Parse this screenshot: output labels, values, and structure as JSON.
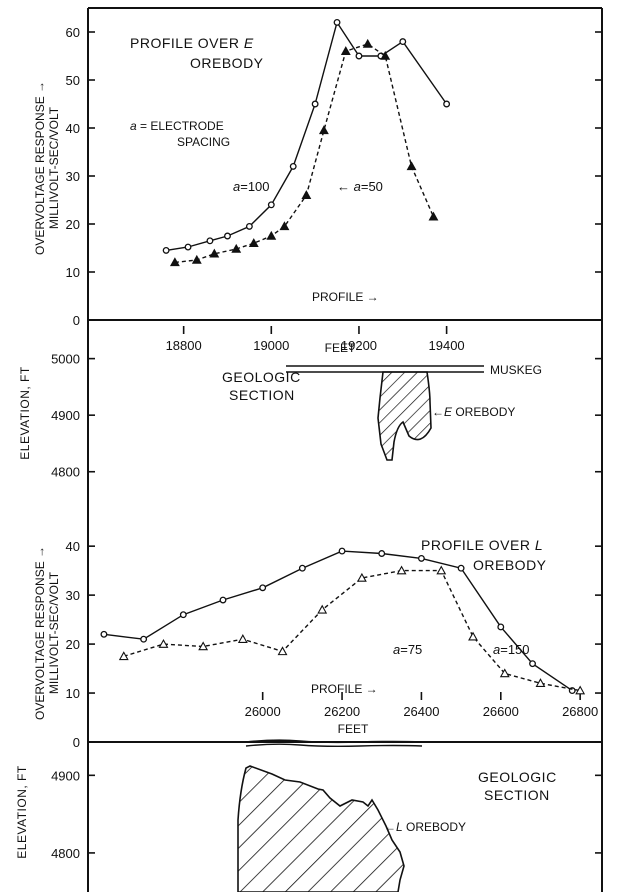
{
  "chart_data": [
    {
      "type": "line",
      "title": "PROFILE OVER E OREBODY",
      "ylabel_line1": "OVERVOLTAGE RESPONSE →",
      "ylabel_line2": "MILLIVOLT-SEC/VOLT",
      "xlabel": "FEET",
      "profile_label": "PROFILE →",
      "spacing_note_line1": "a = ELECTRODE",
      "spacing_note_line2": "SPACING",
      "x_ticks": [
        "18800",
        "19000",
        "19200",
        "19400"
      ],
      "x_tick_values": [
        18800,
        19000,
        19200,
        19400
      ],
      "y_ticks": [
        "0",
        "10",
        "20",
        "30",
        "40",
        "50",
        "60"
      ],
      "y_tick_values": [
        0,
        10,
        20,
        30,
        40,
        50,
        60
      ],
      "xlim": [
        18600,
        19750
      ],
      "ylim": [
        0,
        65
      ],
      "series": [
        {
          "name": "a = 100",
          "marker": "circle",
          "style": "solid",
          "x": [
            18760,
            18810,
            18860,
            18900,
            18950,
            19000,
            19050,
            19100,
            19150,
            19200,
            19250,
            19300,
            19400
          ],
          "y": [
            14.5,
            15.2,
            16.5,
            17.5,
            19.5,
            24,
            32,
            45,
            62,
            55,
            55,
            58,
            45
          ]
        },
        {
          "name": "a = 50",
          "marker": "filled-triangle",
          "style": "dashed",
          "x": [
            18780,
            18830,
            18870,
            18920,
            18960,
            19000,
            19030,
            19080,
            19120,
            19170,
            19220,
            19260,
            19320,
            19370
          ],
          "y": [
            12,
            12.5,
            13.8,
            14.8,
            16,
            17.5,
            19.5,
            26,
            39.5,
            56,
            57.5,
            55,
            32,
            21.5
          ]
        }
      ]
    },
    {
      "type": "diagram",
      "title_line1": "GEOLOGIC",
      "title_line2": "SECTION",
      "ylabel": "ELEVATION, FT",
      "y_ticks": [
        "4800",
        "4900",
        "5000"
      ],
      "y_tick_values": [
        4800,
        4900,
        5000
      ],
      "ylim": [
        4750,
        5040
      ],
      "labels": {
        "muskeg": "MUSKEG",
        "orebody": "←E OREBODY"
      }
    },
    {
      "type": "line",
      "title": "PROFILE OVER L OREBODY",
      "ylabel_line1": "OVERVOLTAGE RESPONSE →",
      "ylabel_line2": "MILLIVOLT-SEC/VOLT",
      "xlabel": "FEET",
      "profile_label": "PROFILE →",
      "x_ticks": [
        "26000",
        "26200",
        "26400",
        "26600",
        "26800"
      ],
      "x_tick_values": [
        26000,
        26200,
        26400,
        26600,
        26800
      ],
      "y_ticks": [
        "0",
        "10",
        "20",
        "30",
        "40"
      ],
      "y_tick_values": [
        0,
        10,
        20,
        30,
        40
      ],
      "xlim": [
        25580,
        26850
      ],
      "ylim": [
        0,
        48
      ],
      "series": [
        {
          "name": "a = 150",
          "marker": "circle",
          "style": "solid",
          "x": [
            25600,
            25700,
            25800,
            25900,
            26000,
            26100,
            26200,
            26300,
            26400,
            26500,
            26600,
            26680,
            26780
          ],
          "y": [
            22,
            21,
            26,
            29,
            31.5,
            35.5,
            39,
            38.5,
            37.5,
            35.5,
            23.5,
            16,
            10.5
          ],
          "x_extra": [
            26800
          ],
          "y_extra": [
            10.5
          ]
        },
        {
          "name": "a = 75",
          "marker": "open-triangle",
          "style": "dashed",
          "x": [
            25650,
            25750,
            25850,
            25950,
            26050,
            26150,
            26250,
            26350,
            26450,
            26530,
            26610,
            26700,
            26800
          ],
          "y": [
            17.5,
            20,
            19.5,
            21,
            18.5,
            27,
            33.5,
            35,
            35,
            21.5,
            14,
            12,
            10.5
          ]
        }
      ]
    },
    {
      "type": "diagram",
      "title_line1": "GEOLOGIC",
      "title_line2": "SECTION",
      "ylabel": "ELEVATION, FT",
      "y_ticks": [
        "4800",
        "4900"
      ],
      "y_tick_values": [
        4800,
        4900
      ],
      "ylim": [
        4720,
        4970
      ],
      "labels": {
        "orebody": "←L OREBODY"
      }
    }
  ]
}
